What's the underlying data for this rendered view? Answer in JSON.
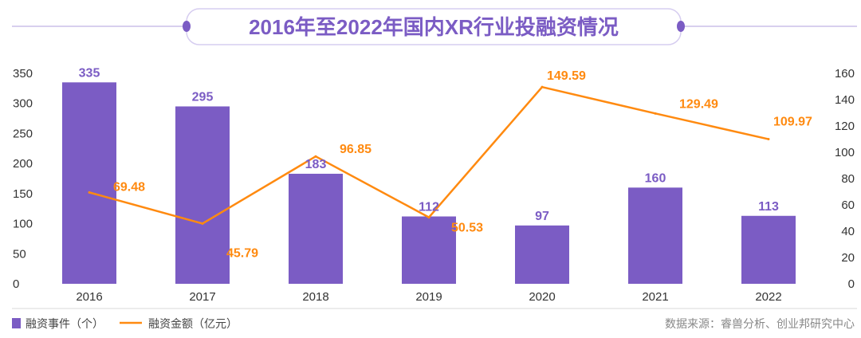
{
  "title": "2016年至2022年国内XR行业投融资情况",
  "source": "数据来源：睿兽分析、创业邦研究中心",
  "colors": {
    "bar": "#7B5CC4",
    "line": "#FF8A10",
    "title": "#7B5CC4",
    "axis": "#333333"
  },
  "chart_data": {
    "type": "bar+line",
    "title": "2016年至2022年国内XR行业投融资情况",
    "categories": [
      "2016",
      "2017",
      "2018",
      "2019",
      "2020",
      "2021",
      "2022"
    ],
    "series": [
      {
        "name": "融资事件（个）",
        "type": "bar",
        "axis": "left",
        "values": [
          335,
          295,
          183,
          112,
          97,
          160,
          113
        ],
        "labels": [
          "335",
          "295",
          "183",
          "112",
          "97",
          "160",
          "113"
        ]
      },
      {
        "name": "融资金额（亿元）",
        "type": "line",
        "axis": "right",
        "values": [
          69.48,
          45.79,
          96.85,
          50.53,
          149.59,
          129.49,
          109.97
        ],
        "labels": [
          "69.48",
          "45.79",
          "96.85",
          "50.53",
          "149.59",
          "129.49",
          "109.97"
        ]
      }
    ],
    "left_axis": {
      "ylim": [
        0,
        350
      ],
      "ticks": [
        "0",
        "50",
        "100",
        "150",
        "200",
        "250",
        "300",
        "350"
      ]
    },
    "right_axis": {
      "ylim": [
        0,
        160
      ],
      "ticks": [
        "0",
        "20",
        "40",
        "60",
        "80",
        "100",
        "120",
        "140",
        "160"
      ]
    },
    "legend": {
      "placement": "bottom-left",
      "items": [
        "融资事件（个）",
        "融资金额（亿元）"
      ]
    },
    "grid": false
  }
}
